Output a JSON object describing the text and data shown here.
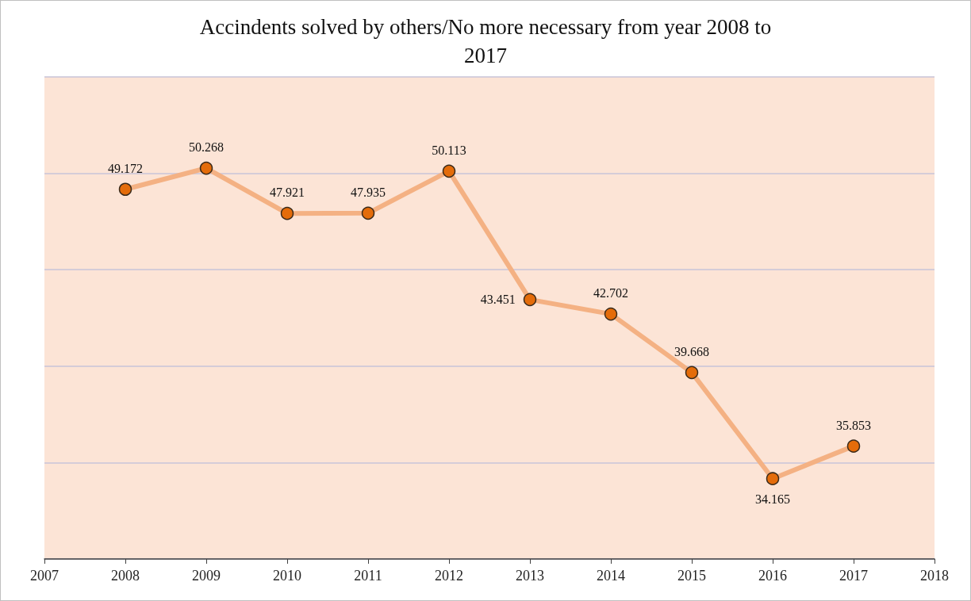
{
  "chart_data": {
    "type": "line",
    "title": "Accindents solved by others/No more necessary from year 2008 to 2017",
    "x": [
      2008,
      2009,
      2010,
      2011,
      2012,
      2013,
      2014,
      2015,
      2016,
      2017
    ],
    "series": [
      {
        "color": "#f4b183",
        "values": [
          49.172,
          50.268,
          47.921,
          47.935,
          50.113,
          43.451,
          42.702,
          39.668,
          34.165,
          35.853
        ]
      }
    ],
    "marker": "circle",
    "data_labels": true,
    "xlim": [
      2007,
      2018
    ],
    "xticks": [
      2007,
      2008,
      2009,
      2010,
      2011,
      2012,
      2013,
      2014,
      2015,
      2016,
      2017,
      2018
    ],
    "ylim": [
      30,
      55
    ],
    "yticks": [
      {
        "value": 30,
        "label": null
      },
      {
        "value": 35,
        "label": null
      },
      {
        "value": 40,
        "label": null
      },
      {
        "value": 45,
        "label": null
      },
      {
        "value": 50,
        "label": null
      },
      {
        "value": 55,
        "label": null
      }
    ],
    "tick_labels": "x",
    "grid": "y"
  }
}
